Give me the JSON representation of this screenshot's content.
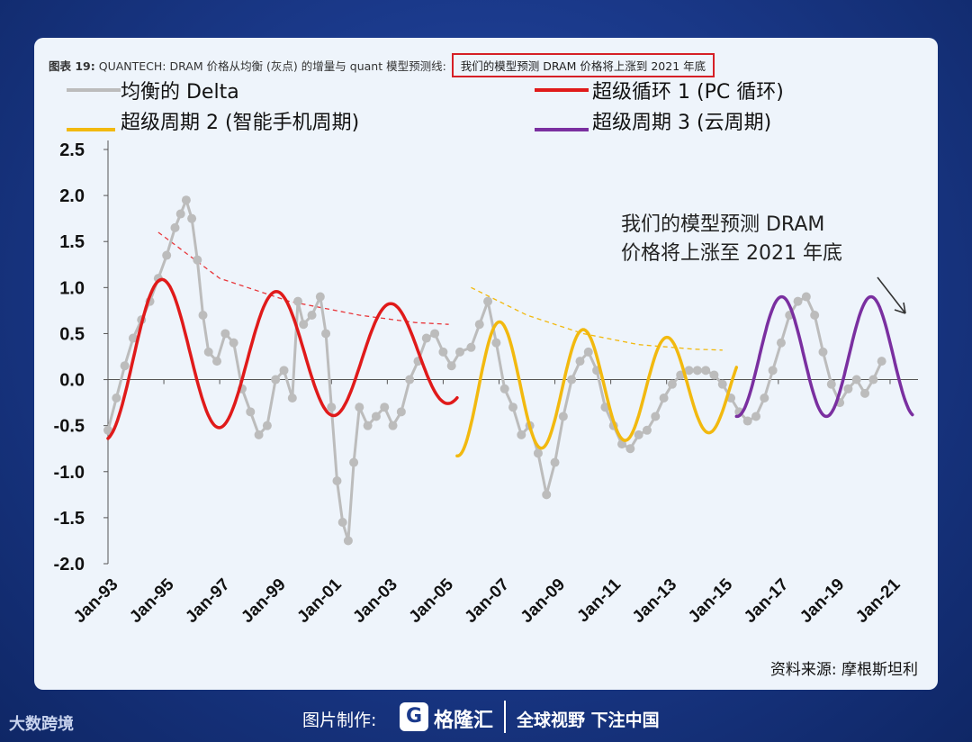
{
  "figure": {
    "title_prefix": "图表 19:",
    "title_main": "QUANTECH: DRAM 价格从均衡 (灰点) 的增量与 quant 模型预测线:",
    "title_highlight": "我们的模型预测 DRAM 价格将上涨到 2021 年底",
    "source": "资料来源: 摩根斯坦利"
  },
  "footer": {
    "made_by": "图片制作:",
    "brand_logo": "G",
    "brand": "格隆汇",
    "slogan": "全球视野 下注中国",
    "corner": "大数跨境"
  },
  "colors": {
    "delta": "#bcbcbc",
    "cycle1": "#e01a1a",
    "cycle2": "#f2b90f",
    "cycle3": "#7a2fa0",
    "trend": "#e8363a",
    "trend2": "#f2b90f"
  },
  "chart_data": {
    "type": "line",
    "title": "",
    "xlabel": "",
    "ylabel": "",
    "ylim": [
      -2.0,
      2.5
    ],
    "yticks": [
      "2.5",
      "2.0",
      "1.5",
      "1.0",
      "0.5",
      "0.0",
      "-0.5",
      "-1.0",
      "-1.5",
      "-2.0"
    ],
    "xticks": [
      "Jan-93",
      "Jan-95",
      "Jan-97",
      "Jan-99",
      "Jan-01",
      "Jan-03",
      "Jan-05",
      "Jan-07",
      "Jan-09",
      "Jan-11",
      "Jan-13",
      "Jan-15",
      "Jan-17",
      "Jan-19",
      "Jan-21"
    ],
    "annotation": [
      "我们的模型预测 DRAM",
      "价格将上涨至 2021 年底"
    ],
    "series": [
      {
        "name": "均衡的 Delta",
        "type": "scatter-line",
        "points": [
          [
            1993.0,
            -0.55
          ],
          [
            1993.3,
            -0.2
          ],
          [
            1993.6,
            0.15
          ],
          [
            1993.9,
            0.45
          ],
          [
            1994.2,
            0.65
          ],
          [
            1994.5,
            0.85
          ],
          [
            1994.8,
            1.1
          ],
          [
            1995.1,
            1.35
          ],
          [
            1995.4,
            1.65
          ],
          [
            1995.6,
            1.8
          ],
          [
            1995.8,
            1.95
          ],
          [
            1996.0,
            1.75
          ],
          [
            1996.2,
            1.3
          ],
          [
            1996.4,
            0.7
          ],
          [
            1996.6,
            0.3
          ],
          [
            1996.9,
            0.2
          ],
          [
            1997.2,
            0.5
          ],
          [
            1997.5,
            0.4
          ],
          [
            1997.8,
            -0.1
          ],
          [
            1998.1,
            -0.35
          ],
          [
            1998.4,
            -0.6
          ],
          [
            1998.7,
            -0.5
          ],
          [
            1999.0,
            0.0
          ],
          [
            1999.3,
            0.1
          ],
          [
            1999.6,
            -0.2
          ],
          [
            1999.8,
            0.85
          ],
          [
            2000.0,
            0.6
          ],
          [
            2000.3,
            0.7
          ],
          [
            2000.6,
            0.9
          ],
          [
            2000.8,
            0.5
          ],
          [
            2001.0,
            -0.3
          ],
          [
            2001.2,
            -1.1
          ],
          [
            2001.4,
            -1.55
          ],
          [
            2001.6,
            -1.75
          ],
          [
            2001.8,
            -0.9
          ],
          [
            2002.0,
            -0.3
          ],
          [
            2002.3,
            -0.5
          ],
          [
            2002.6,
            -0.4
          ],
          [
            2002.9,
            -0.3
          ],
          [
            2003.2,
            -0.5
          ],
          [
            2003.5,
            -0.35
          ],
          [
            2003.8,
            0.0
          ],
          [
            2004.1,
            0.2
          ],
          [
            2004.4,
            0.45
          ],
          [
            2004.7,
            0.5
          ],
          [
            2005.0,
            0.3
          ],
          [
            2005.3,
            0.15
          ],
          [
            2005.6,
            0.3
          ],
          [
            2006.0,
            0.35
          ],
          [
            2006.3,
            0.6
          ],
          [
            2006.6,
            0.85
          ],
          [
            2006.9,
            0.4
          ],
          [
            2007.2,
            -0.1
          ],
          [
            2007.5,
            -0.3
          ],
          [
            2007.8,
            -0.6
          ],
          [
            2008.1,
            -0.5
          ],
          [
            2008.4,
            -0.8
          ],
          [
            2008.7,
            -1.25
          ],
          [
            2009.0,
            -0.9
          ],
          [
            2009.3,
            -0.4
          ],
          [
            2009.6,
            0.0
          ],
          [
            2009.9,
            0.2
          ],
          [
            2010.2,
            0.3
          ],
          [
            2010.5,
            0.1
          ],
          [
            2010.8,
            -0.3
          ],
          [
            2011.1,
            -0.5
          ],
          [
            2011.4,
            -0.7
          ],
          [
            2011.7,
            -0.75
          ],
          [
            2012.0,
            -0.6
          ],
          [
            2012.3,
            -0.55
          ],
          [
            2012.6,
            -0.4
          ],
          [
            2012.9,
            -0.2
          ],
          [
            2013.2,
            -0.05
          ],
          [
            2013.5,
            0.05
          ],
          [
            2013.8,
            0.1
          ],
          [
            2014.1,
            0.1
          ],
          [
            2014.4,
            0.1
          ],
          [
            2014.7,
            0.05
          ],
          [
            2015.0,
            -0.05
          ],
          [
            2015.3,
            -0.2
          ],
          [
            2015.6,
            -0.35
          ],
          [
            2015.9,
            -0.45
          ],
          [
            2016.2,
            -0.4
          ],
          [
            2016.5,
            -0.2
          ],
          [
            2016.8,
            0.1
          ],
          [
            2017.1,
            0.4
          ],
          [
            2017.4,
            0.7
          ],
          [
            2017.7,
            0.85
          ],
          [
            2018.0,
            0.9
          ],
          [
            2018.3,
            0.7
          ],
          [
            2018.6,
            0.3
          ],
          [
            2018.9,
            -0.05
          ],
          [
            2019.2,
            -0.25
          ],
          [
            2019.5,
            -0.1
          ],
          [
            2019.8,
            0.0
          ],
          [
            2020.1,
            -0.15
          ],
          [
            2020.4,
            0.0
          ],
          [
            2020.7,
            0.2
          ]
        ]
      },
      {
        "name": "超级循环 1 (PC 循环)",
        "type": "line",
        "segment": [
          1993.0,
          2005.5
        ],
        "wave": {
          "center": 0.25,
          "amp": 0.9,
          "decay_to": 0.5,
          "period": 4.1,
          "phase": 1993.0
        }
      },
      {
        "name": "超级周期 2 (智能手机周期)",
        "type": "line",
        "segment": [
          2005.5,
          2015.5
        ],
        "wave": {
          "center": -0.08,
          "amp": 0.75,
          "decay_to": 0.47,
          "period": 3.0,
          "phase": 2005.6
        }
      },
      {
        "name": "超级周期 3 (云周期)",
        "type": "line",
        "segment": [
          2015.5,
          2021.8
        ],
        "wave": {
          "center": 0.25,
          "amp": 0.65,
          "decay_to": 0.65,
          "period": 3.2,
          "phase": 2015.6
        }
      }
    ],
    "trendlines": [
      {
        "color_key": "trend",
        "points": [
          [
            1994.8,
            1.6
          ],
          [
            1997.0,
            1.1
          ],
          [
            1999.5,
            0.85
          ],
          [
            2002.0,
            0.7
          ],
          [
            2004.0,
            0.62
          ],
          [
            2005.2,
            0.6
          ]
        ]
      },
      {
        "color_key": "trend2",
        "points": [
          [
            2006.0,
            1.0
          ],
          [
            2008.0,
            0.7
          ],
          [
            2010.0,
            0.5
          ],
          [
            2012.0,
            0.38
          ],
          [
            2014.0,
            0.33
          ],
          [
            2015.0,
            0.32
          ]
        ]
      }
    ]
  }
}
